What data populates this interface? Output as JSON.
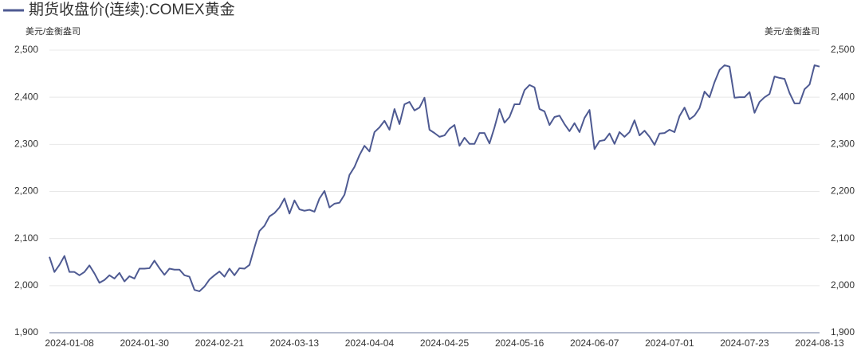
{
  "chart_data": {
    "type": "line",
    "ylabel": "美元/金衡盎司",
    "categories": [
      null,
      null,
      null,
      null,
      "2024-01-08",
      null,
      null,
      null,
      null,
      null,
      null,
      null,
      null,
      null,
      null,
      null,
      null,
      null,
      null,
      "2024-01-30",
      null,
      null,
      null,
      null,
      null,
      null,
      null,
      null,
      null,
      null,
      null,
      null,
      null,
      null,
      "2024-02-21",
      null,
      null,
      null,
      null,
      null,
      null,
      null,
      null,
      null,
      null,
      null,
      null,
      null,
      null,
      "2024-03-13",
      null,
      null,
      null,
      null,
      null,
      null,
      null,
      null,
      null,
      null,
      null,
      null,
      null,
      null,
      "2024-04-04",
      null,
      null,
      null,
      null,
      null,
      null,
      null,
      null,
      null,
      null,
      null,
      null,
      null,
      null,
      "2024-04-25",
      null,
      null,
      null,
      null,
      null,
      null,
      null,
      null,
      null,
      null,
      null,
      null,
      null,
      null,
      "2024-05-16",
      null,
      null,
      null,
      null,
      null,
      null,
      null,
      null,
      null,
      null,
      null,
      null,
      null,
      null,
      "2024-06-07",
      null,
      null,
      null,
      null,
      null,
      null,
      null,
      null,
      null,
      null,
      null,
      null,
      null,
      null,
      "2024-07-01",
      null,
      null,
      null,
      null,
      null,
      null,
      null,
      null,
      null,
      null,
      null,
      null,
      null,
      null,
      "2024-07-23",
      null,
      null,
      null,
      null,
      null,
      null,
      null,
      null,
      null,
      null,
      null,
      null,
      null,
      null,
      "2024-08-13"
    ],
    "series": [
      {
        "name": "期货收盘价(连续):COMEX黄金",
        "color": "#4e5a92",
        "values": [
          2061,
          2029,
          2044,
          2063,
          2029,
          2029,
          2022,
          2029,
          2043,
          2026,
          2006,
          2012,
          2022,
          2015,
          2027,
          2009,
          2020,
          2015,
          2036,
          2036,
          2037,
          2053,
          2037,
          2023,
          2036,
          2034,
          2034,
          2022,
          2019,
          1991,
          1988,
          1998,
          2013,
          2022,
          2030,
          2019,
          2036,
          2022,
          2037,
          2036,
          2044,
          2081,
          2116,
          2127,
          2147,
          2154,
          2166,
          2185,
          2153,
          2181,
          2162,
          2159,
          2161,
          2157,
          2185,
          2201,
          2166,
          2174,
          2176,
          2193,
          2235,
          2252,
          2277,
          2297,
          2285,
          2326,
          2336,
          2350,
          2331,
          2375,
          2343,
          2385,
          2390,
          2372,
          2378,
          2399,
          2331,
          2324,
          2316,
          2319,
          2333,
          2341,
          2297,
          2314,
          2301,
          2301,
          2324,
          2324,
          2302,
          2336,
          2375,
          2346,
          2358,
          2385,
          2385,
          2415,
          2426,
          2421,
          2375,
          2370,
          2341,
          2358,
          2361,
          2343,
          2328,
          2345,
          2326,
          2356,
          2373,
          2290,
          2307,
          2309,
          2323,
          2301,
          2326,
          2316,
          2326,
          2351,
          2319,
          2329,
          2316,
          2299,
          2323,
          2324,
          2331,
          2326,
          2360,
          2378,
          2353,
          2361,
          2377,
          2412,
          2400,
          2432,
          2458,
          2468,
          2465,
          2399,
          2400,
          2400,
          2411,
          2367,
          2390,
          2400,
          2407,
          2444,
          2441,
          2439,
          2409,
          2387,
          2387,
          2417,
          2427,
          2468,
          2465
        ]
      }
    ],
    "ylim": [
      1900,
      2500
    ],
    "yticks": [
      {
        "value": 1900,
        "label": "1,900"
      },
      {
        "value": 2000,
        "label": "2,000"
      },
      {
        "value": 2100,
        "label": "2,100"
      },
      {
        "value": 2200,
        "label": "2,200"
      },
      {
        "value": 2300,
        "label": "2,300"
      },
      {
        "value": 2400,
        "label": "2,400"
      },
      {
        "value": 2500,
        "label": "2,500"
      }
    ],
    "grid": true
  }
}
